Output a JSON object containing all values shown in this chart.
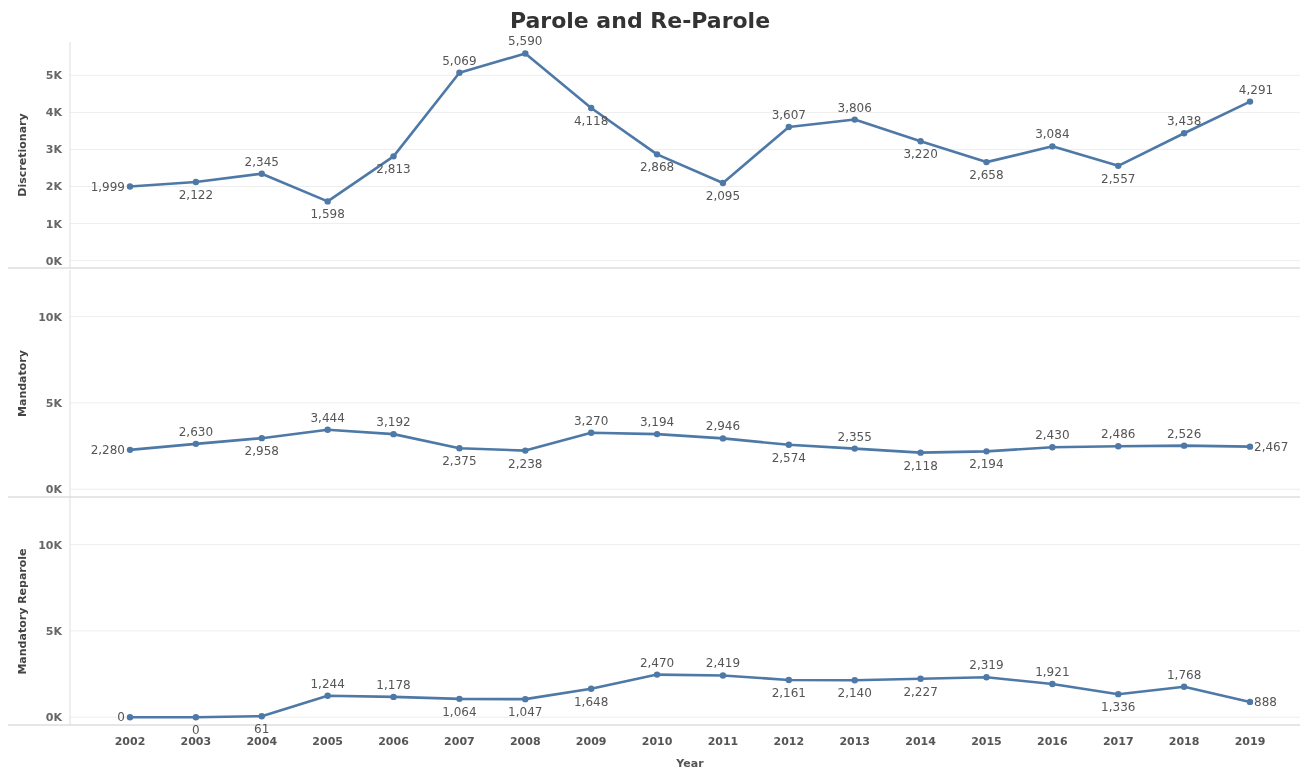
{
  "chart_data": [
    {
      "type": "line",
      "title": "Parole and Re-Parole",
      "ylabel": "Discretionary",
      "categories": [
        "2002",
        "2003",
        "2004",
        "2005",
        "2006",
        "2007",
        "2008",
        "2009",
        "2010",
        "2011",
        "2012",
        "2013",
        "2014",
        "2015",
        "2016",
        "2017",
        "2018",
        "2019"
      ],
      "series": [
        {
          "color": "#4e79a7",
          "values": [
            1999,
            2122,
            2345,
            1598,
            2813,
            5069,
            5590,
            4118,
            2868,
            2095,
            3607,
            3806,
            3220,
            2658,
            3084,
            2557,
            3438,
            4291
          ],
          "value_labels": [
            "1,999",
            "2,122",
            "2,345",
            "1,598",
            "2,813",
            "5,069",
            "5,590",
            "4,118",
            "2,868",
            "2,095",
            "3,607",
            "3,806",
            "3,220",
            "2,658",
            "3,084",
            "2,557",
            "3,438",
            "4,291"
          ]
        }
      ],
      "ylim": [
        -200,
        5900
      ],
      "yticks": [
        {
          "value": 0,
          "label": "0K"
        },
        {
          "value": 1000,
          "label": "1K"
        },
        {
          "value": 2000,
          "label": "2K"
        },
        {
          "value": 3000,
          "label": "3K"
        },
        {
          "value": 4000,
          "label": "4K"
        },
        {
          "value": 5000,
          "label": "5K"
        }
      ],
      "grid": "y",
      "marker": "circle",
      "tick_labels": "y"
    },
    {
      "type": "line",
      "ylabel": "Mandatory",
      "categories": [
        "2002",
        "2003",
        "2004",
        "2005",
        "2006",
        "2007",
        "2008",
        "2009",
        "2010",
        "2011",
        "2012",
        "2013",
        "2014",
        "2015",
        "2016",
        "2017",
        "2018",
        "2019"
      ],
      "series": [
        {
          "color": "#4e79a7",
          "values": [
            2280,
            2630,
            2958,
            3444,
            3192,
            2375,
            2238,
            3270,
            3194,
            2946,
            2574,
            2355,
            2118,
            2194,
            2430,
            2486,
            2526,
            2467
          ],
          "value_labels": [
            "2,280",
            "2,630",
            "2,958",
            "3,444",
            "3,192",
            "2,375",
            "2,238",
            "3,270",
            "3,194",
            "2,946",
            "2,574",
            "2,355",
            "2,118",
            "2,194",
            "2,430",
            "2,486",
            "2,526",
            "2,467"
          ]
        }
      ],
      "ylim": [
        -450,
        12700
      ],
      "yticks": [
        {
          "value": 0,
          "label": "0K"
        },
        {
          "value": 5000,
          "label": "5K"
        },
        {
          "value": 10000,
          "label": "10K"
        }
      ],
      "grid": "y",
      "marker": "circle",
      "tick_labels": "y"
    },
    {
      "type": "line",
      "ylabel": "Mandatory Reparole",
      "xlabel": "Year",
      "categories": [
        "2002",
        "2003",
        "2004",
        "2005",
        "2006",
        "2007",
        "2008",
        "2009",
        "2010",
        "2011",
        "2012",
        "2013",
        "2014",
        "2015",
        "2016",
        "2017",
        "2018",
        "2019"
      ],
      "series": [
        {
          "color": "#4e79a7",
          "values": [
            0,
            0,
            61,
            1244,
            1178,
            1064,
            1047,
            1648,
            2470,
            2419,
            2161,
            2140,
            2227,
            2319,
            1921,
            1336,
            1768,
            888
          ],
          "value_labels": [
            "0",
            "0",
            "61",
            "1,244",
            "1,178",
            "1,064",
            "1,047",
            "1,648",
            "2,470",
            "2,419",
            "2,161",
            "2,140",
            "2,227",
            "2,319",
            "1,921",
            "1,336",
            "1,768",
            "888"
          ]
        }
      ],
      "ylim": [
        -450,
        12700
      ],
      "yticks": [
        {
          "value": 0,
          "label": "0K"
        },
        {
          "value": 5000,
          "label": "5K"
        },
        {
          "value": 10000,
          "label": "10K"
        }
      ],
      "grid": "y",
      "marker": "circle"
    }
  ]
}
